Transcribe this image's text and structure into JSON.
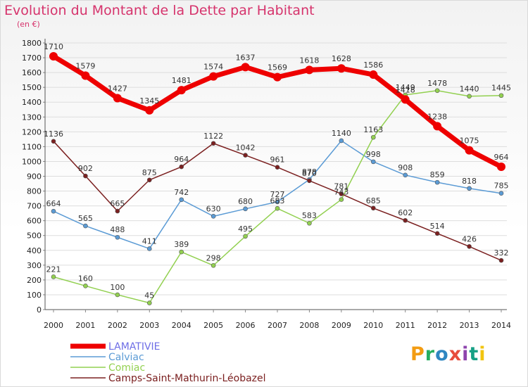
{
  "header": {
    "title": "Evolution du Montant de la Dette par Habitant",
    "subtitle": "(en €)"
  },
  "logo": {
    "text": "Proxiti",
    "letters": [
      {
        "ch": "P",
        "color": "#f39c12"
      },
      {
        "ch": "r",
        "color": "#27ae60"
      },
      {
        "ch": "o",
        "color": "#2e86c1"
      },
      {
        "ch": "x",
        "color": "#e74c3c"
      },
      {
        "ch": "i",
        "color": "#8e44ad"
      },
      {
        "ch": "t",
        "color": "#16a085"
      },
      {
        "ch": "i",
        "color": "#f1c40f"
      }
    ]
  },
  "chart_data": {
    "type": "line",
    "title": "Evolution du Montant de la Dette par Habitant",
    "subtitle": "(en €)",
    "xlabel": "",
    "ylabel": "",
    "x": [
      "2000",
      "2001",
      "2002",
      "2003",
      "2004",
      "2005",
      "2006",
      "2007",
      "2008",
      "2009",
      "2010",
      "2011",
      "2012",
      "2013",
      "2014"
    ],
    "yticks": [
      0,
      100,
      200,
      300,
      400,
      500,
      600,
      700,
      800,
      900,
      1000,
      1100,
      1200,
      1300,
      1400,
      1500,
      1600,
      1700,
      1800
    ],
    "ylim": [
      0,
      1800
    ],
    "grid": "horizontal",
    "legend": "bottom-left",
    "series": [
      {
        "name": "LAMATIVIE",
        "color": "#ee0000",
        "labelColor": "#6e6ee6",
        "values": [
          1710,
          1579,
          1427,
          1345,
          1481,
          1574,
          1637,
          1569,
          1618,
          1628,
          1586,
          1418,
          1238,
          1075,
          964
        ]
      },
      {
        "name": "Calviac",
        "color": "#5b9bd5",
        "labelColor": "#5b9bd5",
        "values": [
          664,
          565,
          488,
          411,
          742,
          630,
          680,
          727,
          878,
          1140,
          998,
          908,
          859,
          818,
          785
        ]
      },
      {
        "name": "Comiac",
        "color": "#92d050",
        "labelColor": "#92d050",
        "values": [
          221,
          160,
          100,
          45,
          389,
          298,
          495,
          683,
          583,
          743,
          1163,
          1449,
          1478,
          1440,
          1445
        ]
      },
      {
        "name": "Camps-Saint-Mathurin-Léobazel",
        "color": "#7b2020",
        "labelColor": "#7b2020",
        "values": [
          1136,
          902,
          665,
          875,
          964,
          1122,
          1042,
          961,
          870,
          781,
          685,
          602,
          514,
          426,
          332
        ]
      }
    ]
  }
}
